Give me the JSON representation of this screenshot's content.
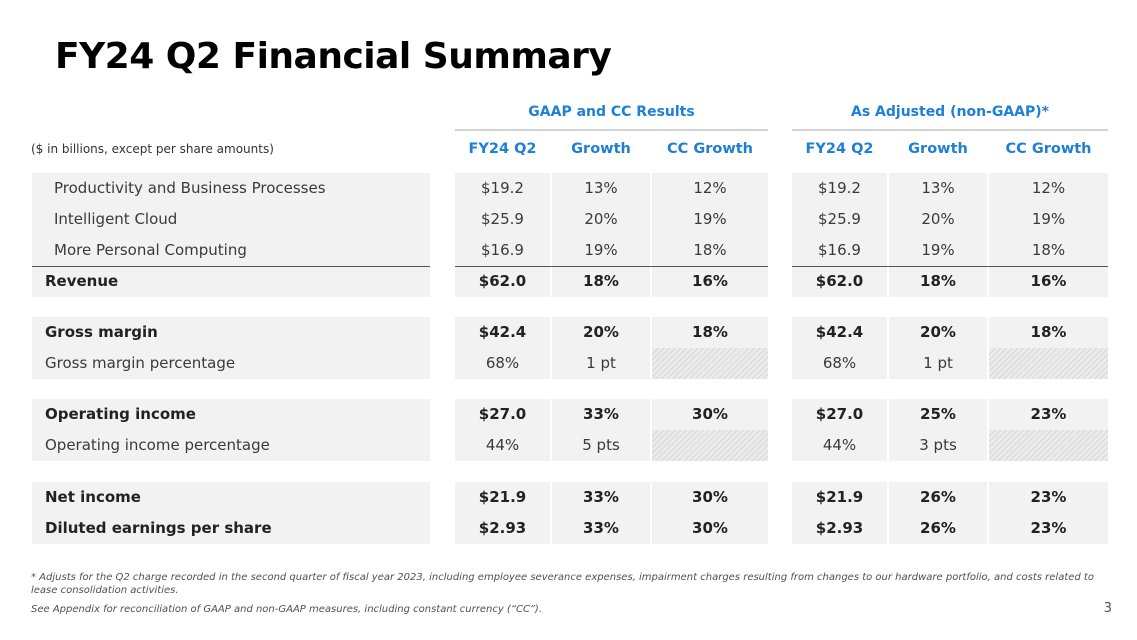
{
  "title": "FY24 Q2 Financial Summary",
  "units_note": "($ in billions, except per share amounts)",
  "groups": {
    "gaap": {
      "header": "GAAP and CC Results",
      "columns": [
        "FY24 Q2",
        "Growth",
        "CC Growth"
      ]
    },
    "adjusted": {
      "header": "As Adjusted (non-GAAP)*",
      "columns": [
        "FY24 Q2",
        "Growth",
        "CC Growth"
      ]
    }
  },
  "rows": [
    {
      "label": "Productivity and Business Processes",
      "style": "segment",
      "gaap": [
        "$19.2",
        "13%",
        "12%"
      ],
      "adjusted": [
        "$19.2",
        "13%",
        "12%"
      ]
    },
    {
      "label": "Intelligent Cloud",
      "style": "segment",
      "gaap": [
        "$25.9",
        "20%",
        "19%"
      ],
      "adjusted": [
        "$25.9",
        "20%",
        "19%"
      ]
    },
    {
      "label": "More Personal Computing",
      "style": "segment",
      "gaap": [
        "$16.9",
        "19%",
        "18%"
      ],
      "adjusted": [
        "$16.9",
        "19%",
        "18%"
      ]
    },
    {
      "label": "Revenue",
      "style": "bold",
      "gaap": [
        "$62.0",
        "18%",
        "16%"
      ],
      "adjusted": [
        "$62.0",
        "18%",
        "16%"
      ]
    },
    {
      "label": "Gross margin",
      "style": "bold",
      "gaap": [
        "$42.4",
        "20%",
        "18%"
      ],
      "adjusted": [
        "$42.4",
        "20%",
        "18%"
      ]
    },
    {
      "label": "Gross margin percentage",
      "style": "plain",
      "gaap": [
        "68%",
        "1 pt",
        ""
      ],
      "adjusted": [
        "68%",
        "1 pt",
        ""
      ]
    },
    {
      "label": "Operating income",
      "style": "bold",
      "gaap": [
        "$27.0",
        "33%",
        "30%"
      ],
      "adjusted": [
        "$27.0",
        "25%",
        "23%"
      ]
    },
    {
      "label": "Operating income percentage",
      "style": "plain",
      "gaap": [
        "44%",
        "5 pts",
        ""
      ],
      "adjusted": [
        "44%",
        "3 pts",
        ""
      ]
    },
    {
      "label": "Net income",
      "style": "bold",
      "gaap": [
        "$21.9",
        "33%",
        "30%"
      ],
      "adjusted": [
        "$21.9",
        "26%",
        "23%"
      ]
    },
    {
      "label": "Diluted earnings per share",
      "style": "bold",
      "gaap": [
        "$2.93",
        "33%",
        "30%"
      ],
      "adjusted": [
        "$2.93",
        "26%",
        "23%"
      ]
    }
  ],
  "footnotes": {
    "adjustment_line1": "* Adjusts for the Q2 charge recorded in the second quarter of fiscal year 2023, including employee severance expenses, impairment charges resulting from changes to our hardware portfolio, and costs related to",
    "adjustment_line2": "lease consolidation activities.",
    "appendix": "See Appendix for reconciliation of GAAP and non-GAAP measures, including constant currency (“CC”)."
  },
  "page_number": "3",
  "colors": {
    "accent": "#1d7fd6",
    "row_background": "#f2f2f2",
    "title": "#000000"
  }
}
